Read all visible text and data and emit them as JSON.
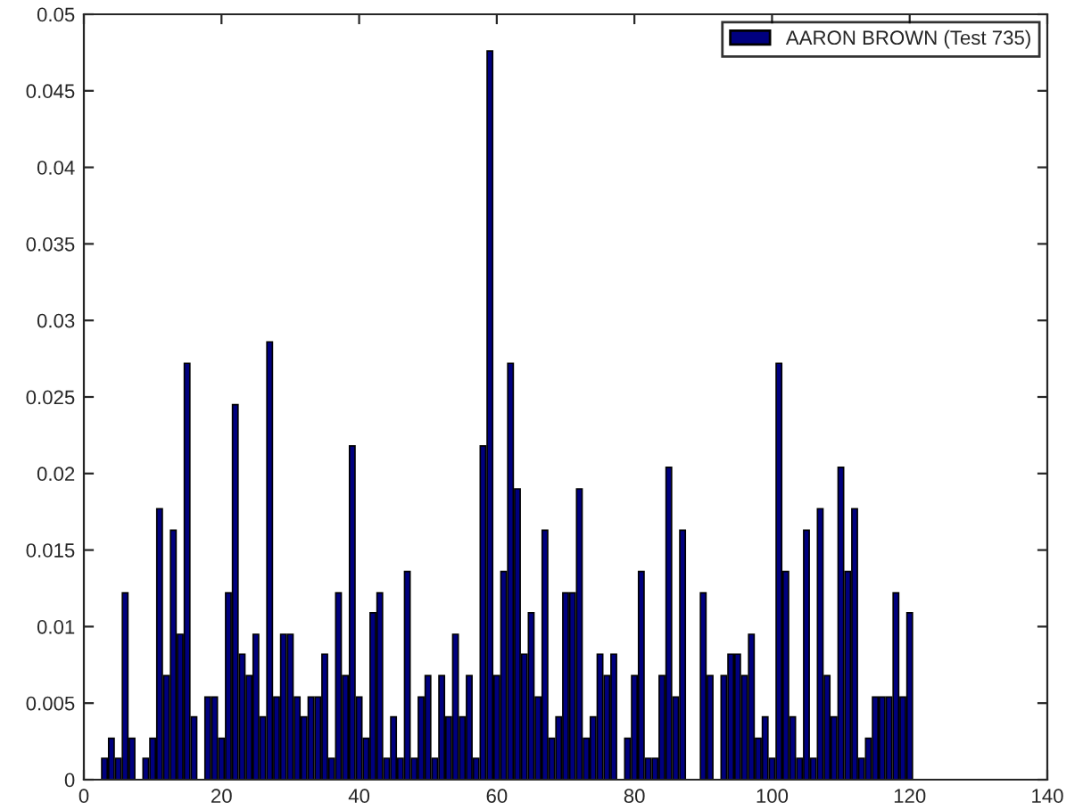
{
  "chart_data": {
    "type": "bar",
    "x": [
      1,
      2,
      3,
      4,
      5,
      6,
      7,
      8,
      9,
      10,
      11,
      12,
      13,
      14,
      15,
      16,
      17,
      18,
      19,
      20,
      21,
      22,
      23,
      24,
      25,
      26,
      27,
      28,
      29,
      30,
      31,
      32,
      33,
      34,
      35,
      36,
      37,
      38,
      39,
      40,
      41,
      42,
      43,
      44,
      45,
      46,
      47,
      48,
      49,
      50,
      51,
      52,
      53,
      54,
      55,
      56,
      57,
      58,
      59,
      60,
      61,
      62,
      63,
      64,
      65,
      66,
      67,
      68,
      69,
      70,
      71,
      72,
      73,
      74,
      75,
      76,
      77,
      78,
      79,
      80,
      81,
      82,
      83,
      84,
      85,
      86,
      87,
      88,
      89,
      90,
      91,
      92,
      93,
      94,
      95,
      96,
      97,
      98,
      99,
      100,
      101,
      102,
      103,
      104,
      105,
      106,
      107,
      108,
      109,
      110,
      111,
      112,
      113,
      114,
      115,
      116,
      117,
      118,
      119,
      120
    ],
    "series": [
      {
        "name": "AARON BROWN (Test 735)",
        "color": "#00007f",
        "values": [
          0,
          0,
          0.0014,
          0.0027,
          0.0014,
          0.0122,
          0.0027,
          0,
          0.0014,
          0.0027,
          0.0177,
          0.0068,
          0.0163,
          0.0095,
          0.0272,
          0.0041,
          0,
          0.0054,
          0.0054,
          0.0027,
          0.0122,
          0.0245,
          0.0082,
          0.0068,
          0.0095,
          0.0041,
          0.0286,
          0.0054,
          0.0095,
          0.0095,
          0.0054,
          0.0041,
          0.0054,
          0.0054,
          0.0082,
          0.0014,
          0.0122,
          0.0068,
          0.0218,
          0.0054,
          0.0027,
          0.0109,
          0.0122,
          0.0014,
          0.0041,
          0.0014,
          0.0136,
          0.0014,
          0.0054,
          0.0068,
          0.0014,
          0.0068,
          0.0041,
          0.0095,
          0.0041,
          0.0068,
          0.0014,
          0.0218,
          0.0476,
          0.0068,
          0.0136,
          0.0272,
          0.019,
          0.0082,
          0.0109,
          0.0054,
          0.0163,
          0.0027,
          0.0041,
          0.0122,
          0.0122,
          0.019,
          0.0027,
          0.0041,
          0.0082,
          0.0068,
          0.0082,
          0,
          0.0027,
          0.0068,
          0.0136,
          0.0014,
          0.0014,
          0.0068,
          0.0204,
          0.0054,
          0.0163,
          0,
          0,
          0.0122,
          0.0068,
          0,
          0.0068,
          0.0082,
          0.0082,
          0.0068,
          0.0095,
          0.0027,
          0.0041,
          0.0014,
          0.0272,
          0.0136,
          0.0041,
          0.0014,
          0.0163,
          0.0014,
          0.0177,
          0.0068,
          0.0041,
          0.0204,
          0.0136,
          0.0177,
          0.0014,
          0.0027,
          0.0054,
          0.0054,
          0.0054,
          0.0122,
          0.0054,
          0.0109
        ]
      }
    ],
    "xlim": [
      0,
      140
    ],
    "xticks": [
      0,
      20,
      40,
      60,
      80,
      100,
      120,
      140
    ],
    "ylim": [
      0,
      0.05
    ],
    "yticks": [
      0,
      0.005,
      0.01,
      0.015,
      0.02,
      0.025,
      0.03,
      0.035,
      0.04,
      0.045,
      0.05
    ],
    "legend": "top right",
    "grid": false
  }
}
